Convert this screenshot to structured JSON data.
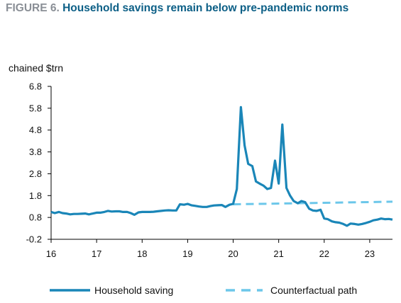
{
  "figure": {
    "label": "FIGURE 6.",
    "title": "Household savings remain below pre-pandemic norms"
  },
  "colors": {
    "title_label": "#8a8f96",
    "title_text": "#0c5f86",
    "household_saving": "#1a86b8",
    "counterfactual": "#6cc7ea",
    "axis": "#000000"
  },
  "chart_data": {
    "type": "line",
    "title": "Household savings remain below pre-pandemic norms",
    "ylabel": "chained $trn",
    "xlabel": "",
    "ylim": [
      -0.2,
      6.8
    ],
    "xlim": [
      16,
      23.5
    ],
    "yticks": [
      -0.2,
      0.8,
      1.8,
      2.8,
      3.8,
      4.8,
      5.8,
      6.8
    ],
    "yticklabels": [
      "-0.2",
      "0.8",
      "1.8",
      "2.8",
      "3.8",
      "4.8",
      "5.8",
      "6.8"
    ],
    "xticks": [
      16,
      17,
      18,
      19,
      20,
      21,
      22,
      23
    ],
    "xticklabels": [
      "16",
      "17",
      "18",
      "19",
      "20",
      "21",
      "22",
      "23"
    ],
    "grid": false,
    "legend_position": "bottom",
    "series": [
      {
        "name": "Household saving",
        "style": "solid",
        "x": [
          16.0,
          16.08,
          16.17,
          16.25,
          16.33,
          16.42,
          16.5,
          16.58,
          16.67,
          16.75,
          16.83,
          16.92,
          17.0,
          17.08,
          17.17,
          17.25,
          17.33,
          17.42,
          17.5,
          17.58,
          17.67,
          17.75,
          17.83,
          17.92,
          18.0,
          18.08,
          18.17,
          18.25,
          18.33,
          18.42,
          18.5,
          18.58,
          18.67,
          18.75,
          18.83,
          18.92,
          19.0,
          19.08,
          19.17,
          19.25,
          19.33,
          19.42,
          19.5,
          19.58,
          19.67,
          19.75,
          19.83,
          19.92,
          20.0,
          20.08,
          20.17,
          20.25,
          20.33,
          20.42,
          20.5,
          20.58,
          20.67,
          20.75,
          20.83,
          20.92,
          21.0,
          21.08,
          21.17,
          21.25,
          21.33,
          21.42,
          21.5,
          21.58,
          21.67,
          21.75,
          21.83,
          21.92,
          22.0,
          22.08,
          22.17,
          22.25,
          22.33,
          22.42,
          22.5,
          22.58,
          22.67,
          22.75,
          22.83,
          22.92,
          23.0,
          23.08,
          23.17,
          23.25,
          23.33,
          23.42,
          23.5
        ],
        "y": [
          1.05,
          1.0,
          1.05,
          1.0,
          0.98,
          0.94,
          0.96,
          0.96,
          0.97,
          0.98,
          0.94,
          0.98,
          1.02,
          1.02,
          1.05,
          1.1,
          1.07,
          1.08,
          1.08,
          1.05,
          1.05,
          1.0,
          0.92,
          1.03,
          1.05,
          1.05,
          1.05,
          1.06,
          1.08,
          1.1,
          1.12,
          1.13,
          1.12,
          1.12,
          1.4,
          1.38,
          1.42,
          1.36,
          1.33,
          1.3,
          1.28,
          1.28,
          1.32,
          1.35,
          1.36,
          1.37,
          1.28,
          1.38,
          1.42,
          2.1,
          5.85,
          4.1,
          3.25,
          3.15,
          2.45,
          2.35,
          2.25,
          2.1,
          2.15,
          3.4,
          2.35,
          5.05,
          2.15,
          1.8,
          1.55,
          1.45,
          1.55,
          1.5,
          1.2,
          1.12,
          1.1,
          1.15,
          0.75,
          0.72,
          0.62,
          0.58,
          0.56,
          0.5,
          0.42,
          0.52,
          0.5,
          0.47,
          0.5,
          0.55,
          0.6,
          0.67,
          0.7,
          0.75,
          0.72,
          0.73,
          0.7
        ]
      },
      {
        "name": "Counterfactual path",
        "style": "dashed",
        "x": [
          20.0,
          23.5
        ],
        "y": [
          1.4,
          1.52
        ]
      }
    ]
  }
}
